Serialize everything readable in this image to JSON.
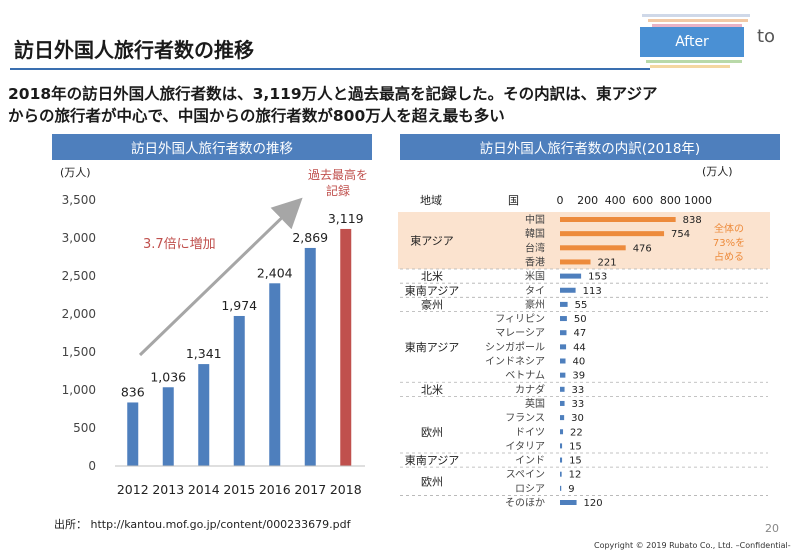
{
  "slide": {
    "title": "訪日外国人旅行者数の推移",
    "after_label": "After",
    "logo_text": "to",
    "subtitle_line1": "2018年の訪日外国人旅行者数は、3,119万人と過去最高を記録した。その内訳は、東アジア",
    "subtitle_line2": "からの旅行者が中心で、中国からの旅行者数が800万人を超え最も多い",
    "source": "出所：   http://kantou.mof.go.jp/content/000233679.pdf",
    "page_number": "20",
    "copyright": "Copyright © 2019 Rubato Co., Ltd. –Confidential-",
    "accent": "#4e7fbd"
  },
  "chart_data": [
    {
      "type": "bar",
      "title": "訪日外国人旅行者数の推移",
      "ylabel": "(万人)",
      "ylim": [
        0,
        3500
      ],
      "yticks": [
        "0",
        "500",
        "1,000",
        "1,500",
        "2,000",
        "2,500",
        "3,000",
        "3,500"
      ],
      "categories": [
        "2012",
        "2013",
        "2014",
        "2015",
        "2016",
        "2017",
        "2018"
      ],
      "values": [
        836,
        1036,
        1341,
        1974,
        2404,
        2869,
        3119
      ],
      "value_labels": [
        "836",
        "1,036",
        "1,341",
        "1,974",
        "2,404",
        "2,869",
        "3,119"
      ],
      "bar_colors": [
        "#4e7fbd",
        "#4e7fbd",
        "#4e7fbd",
        "#4e7fbd",
        "#4e7fbd",
        "#4e7fbd",
        "#c0504d"
      ],
      "annotations": {
        "growth": "3.7倍に増加",
        "record_line1": "過去最高を",
        "record_line2": "記録"
      },
      "grid": false
    },
    {
      "type": "bar",
      "orientation": "horizontal",
      "title": "訪日外国人旅行者数の内訳(2018年)",
      "unit": "(万人)",
      "col_headers": {
        "region": "地域",
        "country": "国"
      },
      "xlim": [
        0,
        1000
      ],
      "xticks": [
        "0",
        "200",
        "400",
        "600",
        "800",
        "1000"
      ],
      "categories": [
        "中国",
        "韓国",
        "台湾",
        "香港",
        "米国",
        "タイ",
        "豪州",
        "フィリピン",
        "マレーシア",
        "シンガポール",
        "インドネシア",
        "ベトナム",
        "カナダ",
        "英国",
        "フランス",
        "ドイツ",
        "イタリア",
        "インド",
        "スペイン",
        "ロシア",
        "そのほか"
      ],
      "values": [
        838,
        754,
        476,
        221,
        153,
        113,
        55,
        50,
        47,
        44,
        40,
        39,
        33,
        33,
        30,
        22,
        15,
        15,
        12,
        9,
        120
      ],
      "colors": {
        "east_asia": "#ed8b3c",
        "other": "#4e7fbd",
        "highlight_bg": "#fbe3cf"
      },
      "regions": [
        {
          "label": "東アジア",
          "row": 1.5
        },
        {
          "label": "北米",
          "row": 4
        },
        {
          "label": "東南アジア",
          "row": 5
        },
        {
          "label": "豪州",
          "row": 6
        },
        {
          "label": "東南アジア",
          "row": 9
        },
        {
          "label": "北米",
          "row": 12
        },
        {
          "label": "欧州",
          "row": 15
        },
        {
          "label": "東南アジア",
          "row": 17
        },
        {
          "label": "欧州",
          "row": 18.5
        }
      ],
      "separators_after_row": [
        3,
        4,
        5,
        6,
        11,
        12,
        16,
        17,
        19
      ],
      "annotation": {
        "line1": "全体の",
        "line2": "73%を",
        "line3": "占める"
      }
    }
  ]
}
